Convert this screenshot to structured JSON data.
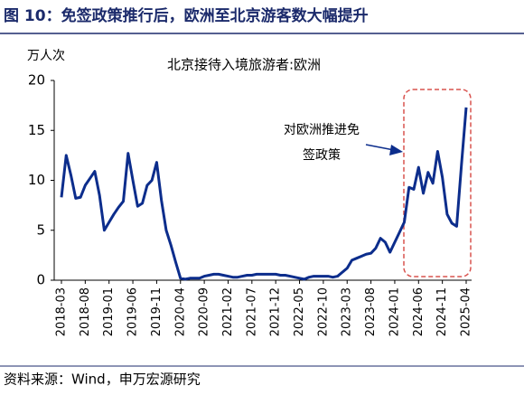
{
  "chart_data": {
    "type": "line",
    "title": "图 10：免签政策推行后，欧洲至北京游客数大幅提升",
    "subtitle": "北京接待入境旅游者:欧洲",
    "y_unit": "万人次",
    "annotation": [
      "对欧洲推进免",
      "签政策"
    ],
    "source": "资料来源：Wind，申万宏源研究",
    "color": "#0c2d8c",
    "categories": [
      "2018-03",
      null,
      null,
      null,
      null,
      "2018-08",
      null,
      null,
      null,
      null,
      "2019-01",
      null,
      null,
      null,
      null,
      "2019-06",
      null,
      null,
      null,
      null,
      "2019-11",
      null,
      null,
      null,
      null,
      "2020-04",
      null,
      null,
      null,
      null,
      "2020-09",
      null,
      null,
      null,
      null,
      "2021-02",
      null,
      null,
      null,
      null,
      "2021-07",
      null,
      null,
      null,
      null,
      "2021-12",
      null,
      null,
      null,
      null,
      "2022-05",
      null,
      null,
      null,
      null,
      "2022-10",
      null,
      null,
      null,
      null,
      "2023-03",
      null,
      null,
      null,
      null,
      "2023-08",
      null,
      null,
      null,
      null,
      "2024-01",
      null,
      null,
      null,
      null,
      "2024-06",
      null,
      null,
      null,
      null,
      "2024-11",
      null,
      null,
      null,
      null,
      "2025-04"
    ],
    "values": [
      8.3,
      12.5,
      10.5,
      8.2,
      8.3,
      9.5,
      10.2,
      10.9,
      8.5,
      5.0,
      5.8,
      6.6,
      7.3,
      7.9,
      12.7,
      10.0,
      7.4,
      7.7,
      9.5,
      10.0,
      11.8,
      8.0,
      5.0,
      3.5,
      1.8,
      0.2,
      0.1,
      0.2,
      0.2,
      0.2,
      0.4,
      0.5,
      0.6,
      0.6,
      0.5,
      0.4,
      0.3,
      0.3,
      0.4,
      0.5,
      0.5,
      0.6,
      0.6,
      0.6,
      0.6,
      0.6,
      0.5,
      0.5,
      0.4,
      0.3,
      0.2,
      0.1,
      0.3,
      0.4,
      0.4,
      0.4,
      0.4,
      0.3,
      0.4,
      0.8,
      1.2,
      2.0,
      2.2,
      2.4,
      2.6,
      2.7,
      3.2,
      4.2,
      3.8,
      2.8,
      3.8,
      4.8,
      5.8,
      9.3,
      9.1,
      11.3,
      8.7,
      10.8,
      9.7,
      12.9,
      10.3,
      6.6,
      5.7,
      5.4,
      11.5,
      17.3
    ],
    "ylim": [
      0,
      20
    ],
    "yticks": [
      0,
      5,
      10,
      15,
      20
    ],
    "grid": false
  }
}
